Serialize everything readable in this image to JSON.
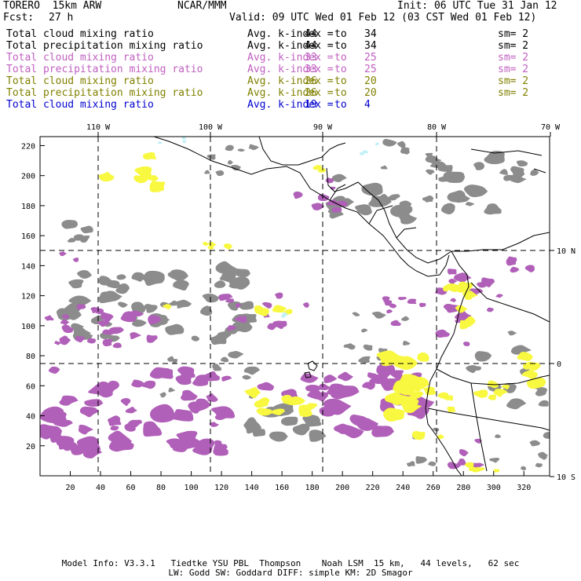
{
  "header": {
    "model": "TORERO  15km ARW",
    "center": "NCAR/MMM",
    "init": "Init: 06 UTC Tue 31 Jan 12",
    "fcst_label": "Fcst:",
    "fcst_value": "27 h",
    "valid": "Valid: 09 UTC Wed 01 Feb 12 (03 CST Wed 01 Feb 12)"
  },
  "legend": [
    {
      "field": "Total cloud mixing ratio",
      "index_label": "Avg. k-index =",
      "from": "44",
      "to_word": "to",
      "to": "34",
      "sm": "sm= 2",
      "color": "#000000"
    },
    {
      "field": "Total precipitation mixing ratio",
      "index_label": "Avg. k-index =",
      "from": "44",
      "to_word": "to",
      "to": "34",
      "sm": "sm= 2",
      "color": "#000000"
    },
    {
      "field": "Total cloud mixing ratio",
      "index_label": "Avg. k-index =",
      "from": "33",
      "to_word": "to",
      "to": "25",
      "sm": "sm= 2",
      "color": "#c060c0"
    },
    {
      "field": "Total precipitation mixing ratio",
      "index_label": "Avg. k-index =",
      "from": "33",
      "to_word": "to",
      "to": "25",
      "sm": "sm= 2",
      "color": "#c060c0"
    },
    {
      "field": "Total cloud mixing ratio",
      "index_label": "Avg. k-index =",
      "from": "26",
      "to_word": "to",
      "to": "20",
      "sm": "sm= 2",
      "color": "#808000"
    },
    {
      "field": "Total precipitation mixing ratio",
      "index_label": "Avg. k-index =",
      "from": "26",
      "to_word": "to",
      "to": "20",
      "sm": "sm= 2",
      "color": "#808000"
    },
    {
      "field": "Total cloud mixing ratio",
      "index_label": "Avg. k-index =",
      "from": "19",
      "to_word": "to",
      "to": "4",
      "sm": "",
      "color": "#0000d0"
    }
  ],
  "map": {
    "lon_labels": [
      "110 W",
      "100 W",
      "90 W",
      "80 W",
      "70 W"
    ],
    "lat_labels": [
      "10 N",
      "0",
      "10 S"
    ],
    "x_ticks": [
      "20",
      "40",
      "60",
      "80",
      "100",
      "120",
      "140",
      "160",
      "180",
      "200",
      "220",
      "240",
      "260",
      "280",
      "300",
      "320"
    ],
    "y_ticks": [
      "220",
      "200",
      "180",
      "160",
      "140",
      "120",
      "100",
      "80",
      "60",
      "40",
      "20"
    ],
    "colors": {
      "gray": "#8c8c8c",
      "purple": "#b060b8",
      "yellow": "#f8f840",
      "cyan": "#c0f0f8"
    }
  },
  "footer": {
    "line1": "Model Info: V3.3.1   Tiedtke YSU PBL  Thompson    Noah LSM  15 km,   44 levels,   62 sec",
    "line2": "LW: Godd SW: Goddard DIFF: simple KM: 2D Smagor"
  }
}
